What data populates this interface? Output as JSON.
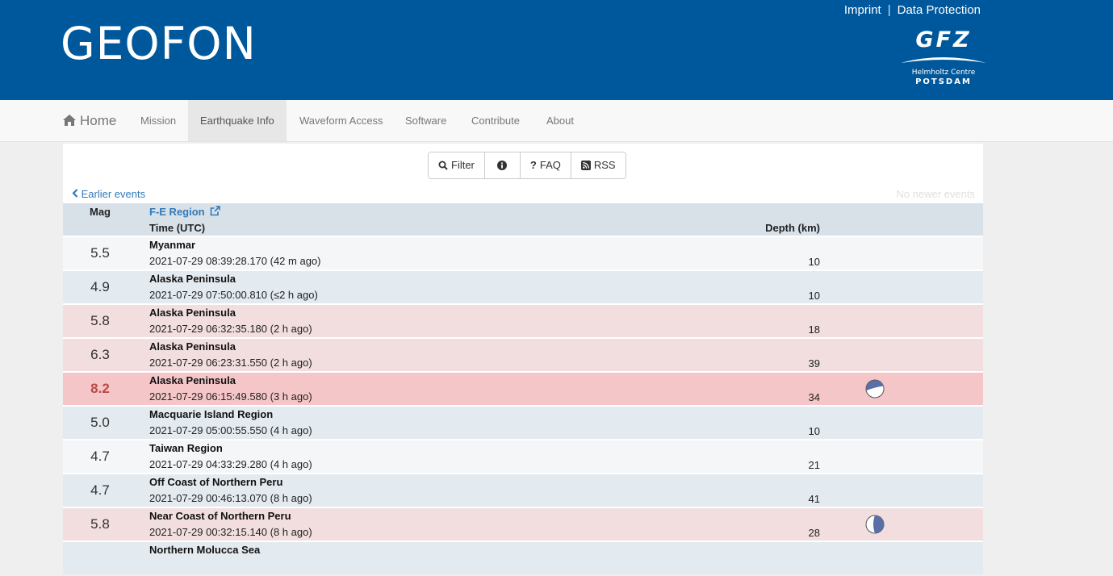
{
  "header": {
    "brand": "GEOFON",
    "links": [
      "Imprint",
      "Data Protection"
    ],
    "separator": "|",
    "logo": {
      "main": "GFZ",
      "line1": "Helmholtz Centre",
      "line2": "POTSDAM"
    }
  },
  "nav": {
    "home": "Home",
    "items": [
      "Mission",
      "Earthquake Info",
      "Waveform Access",
      "Software",
      "Contribute",
      "About"
    ],
    "active": "Earthquake Info"
  },
  "toolbar": {
    "filter": "Filter",
    "info_icon": "info-circle-icon",
    "faq": "FAQ",
    "rss": "RSS"
  },
  "pager": {
    "earlier": "Earlier events",
    "newer": "No newer events"
  },
  "table": {
    "headers": {
      "mag": "Mag",
      "region": "F-E Region",
      "time": "Time (UTC)",
      "depth": "Depth (km)"
    },
    "rows": [
      {
        "mag": "5.5",
        "region": "Myanmar",
        "time": "2021-07-29 08:39:28.170 (42 m ago)",
        "depth": "10",
        "bg": "#f4f6f8",
        "beachball": false
      },
      {
        "mag": "4.9",
        "region": "Alaska Peninsula",
        "time": "2021-07-29 07:50:00.810 (≤2 h ago)",
        "depth": "10",
        "bg": "#e3eaf0",
        "beachball": false
      },
      {
        "mag": "5.8",
        "region": "Alaska Peninsula",
        "time": "2021-07-29 06:32:35.180 (2 h ago)",
        "depth": "18",
        "bg": "#f2dede",
        "beachball": false
      },
      {
        "mag": "6.3",
        "region": "Alaska Peninsula",
        "time": "2021-07-29 06:23:31.550 (2 h ago)",
        "depth": "39",
        "bg": "#f2dede",
        "beachball": false
      },
      {
        "mag": "8.2",
        "region": "Alaska Peninsula",
        "time": "2021-07-29 06:15:49.580 (3 h ago)",
        "depth": "34",
        "bg": "#f5c6c8",
        "beachball": true,
        "big": true
      },
      {
        "mag": "5.0",
        "region": "Macquarie Island Region",
        "time": "2021-07-29 05:00:55.550 (4 h ago)",
        "depth": "10",
        "bg": "#e3eaf0",
        "beachball": false
      },
      {
        "mag": "4.7",
        "region": "Taiwan Region",
        "time": "2021-07-29 04:33:29.280 (4 h ago)",
        "depth": "21",
        "bg": "#f4f6f8",
        "beachball": false
      },
      {
        "mag": "4.7",
        "region": "Off Coast of Northern Peru",
        "time": "2021-07-29 00:46:13.070 (8 h ago)",
        "depth": "41",
        "bg": "#e3eaf0",
        "beachball": false
      },
      {
        "mag": "5.8",
        "region": "Near Coast of Northern Peru",
        "time": "2021-07-29 00:32:15.140 (8 h ago)",
        "depth": "28",
        "bg": "#f2dede",
        "beachball": true
      },
      {
        "mag": "",
        "region": "Northern Molucca Sea",
        "time": "",
        "depth": "",
        "bg": "#e3eaf0",
        "beachball": false
      }
    ]
  },
  "colors": {
    "header_bg": "#00589c",
    "link": "#337ab7",
    "alert_mag": "#b94a48"
  }
}
